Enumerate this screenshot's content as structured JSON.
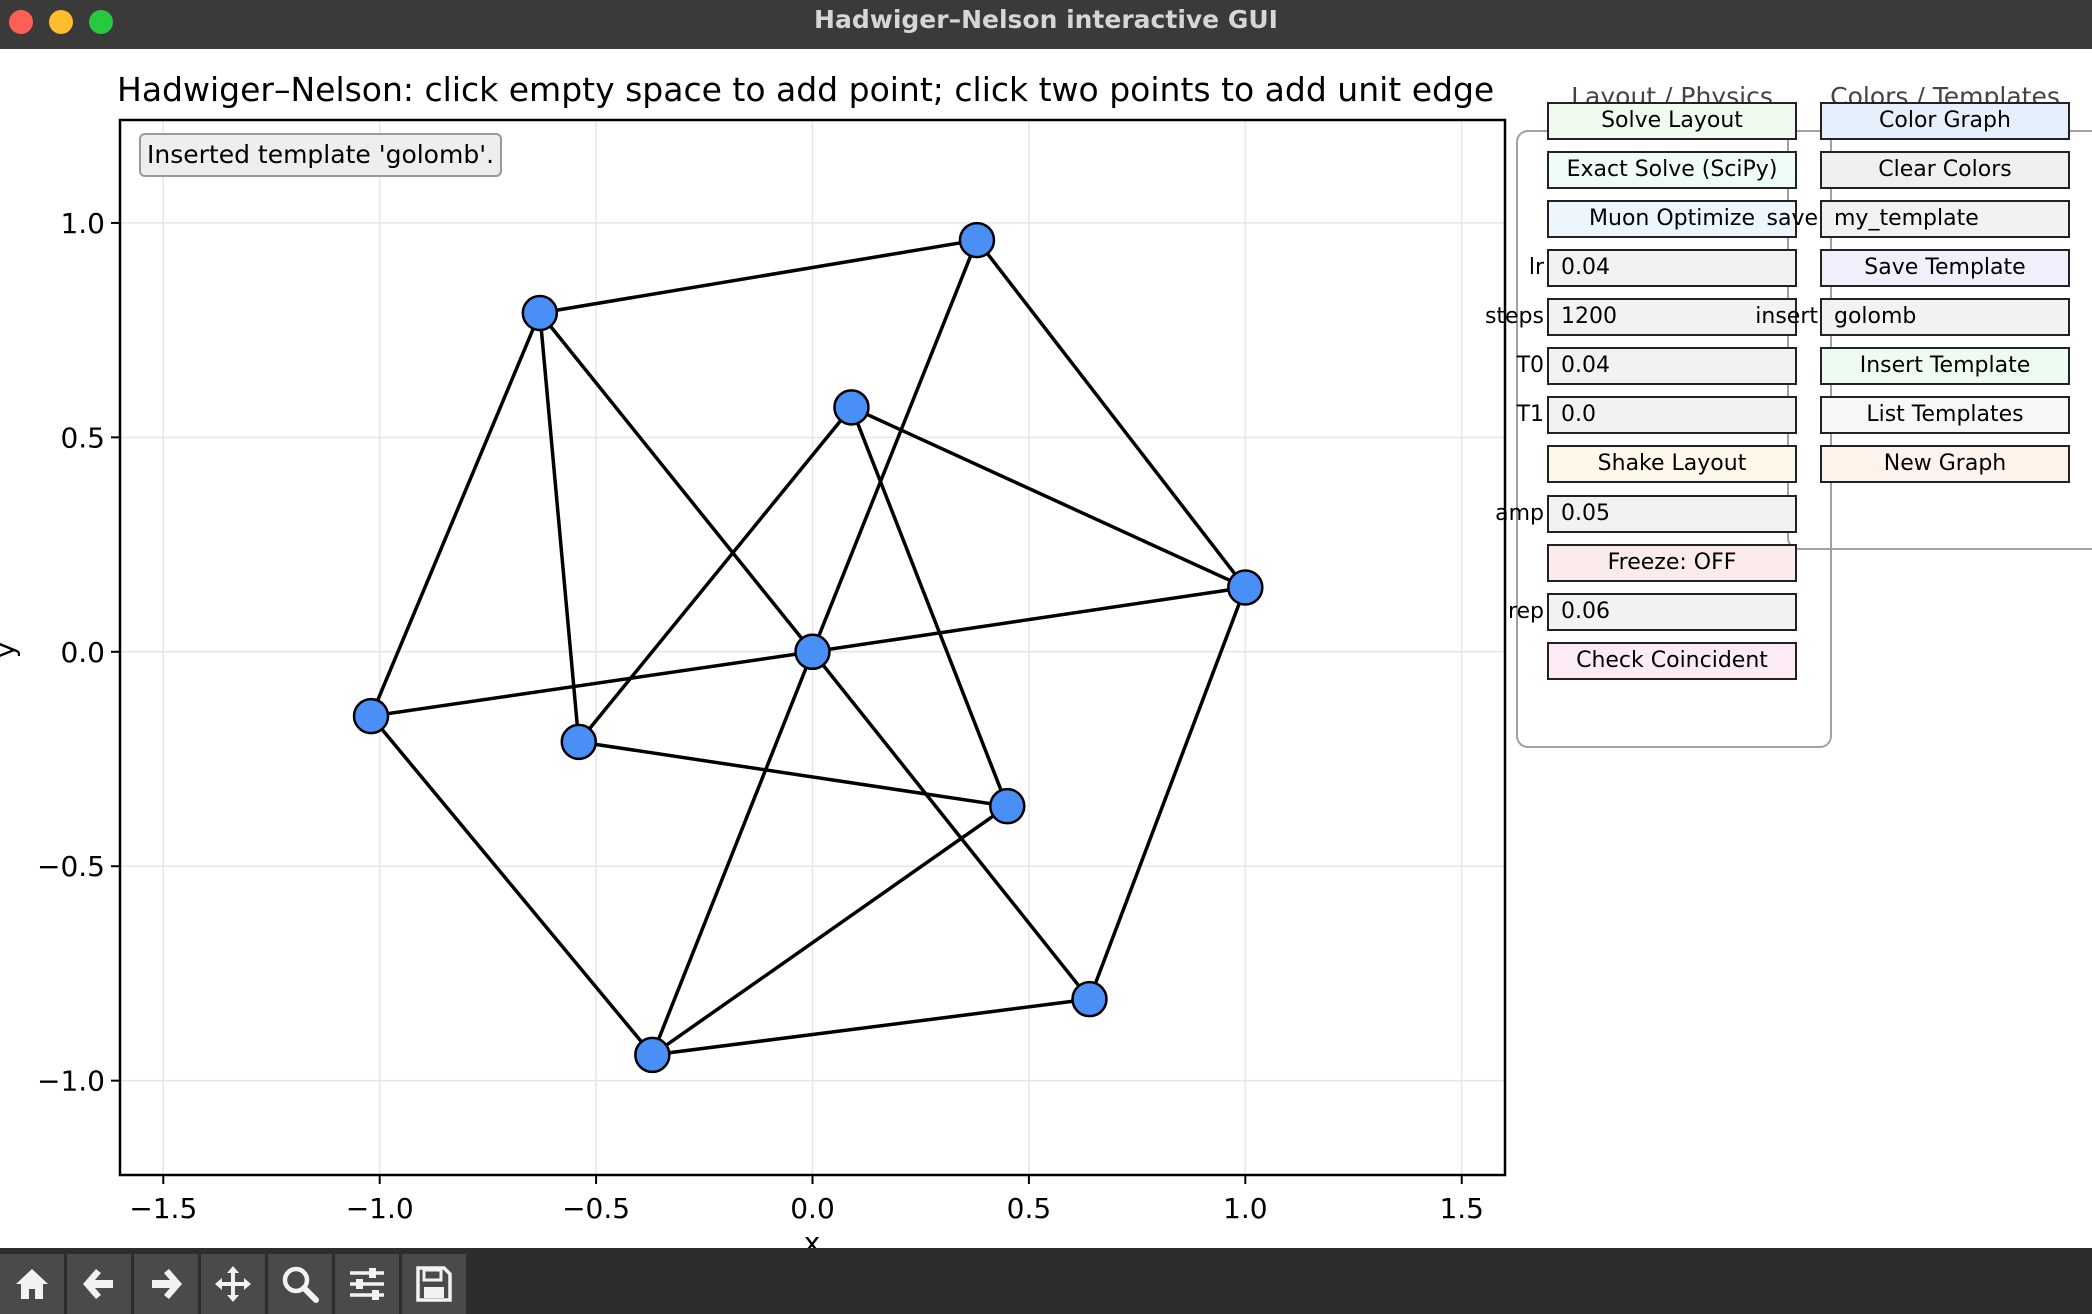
{
  "window": {
    "title": "Hadwiger–Nelson interactive GUI"
  },
  "plot": {
    "title": "Hadwiger–Nelson: click empty space to add point; click two points to add unit edge",
    "xlabel": "x",
    "ylabel": "y",
    "status": "Inserted template 'golomb'."
  },
  "chart_data": {
    "type": "scatter",
    "title": "Hadwiger–Nelson: click empty space to add point; click two points to add unit edge",
    "xlabel": "x",
    "ylabel": "y",
    "xlim": [
      -1.6,
      1.6
    ],
    "ylim": [
      -1.22,
      1.24
    ],
    "xticks": [
      -1.5,
      -1.0,
      -0.5,
      0.0,
      0.5,
      1.0,
      1.5
    ],
    "yticks": [
      -1.0,
      -0.5,
      0.0,
      0.5,
      1.0
    ],
    "xtick_labels": [
      "−1.5",
      "−1.0",
      "−0.5",
      "0.0",
      "0.5",
      "1.0",
      "1.5"
    ],
    "ytick_labels": [
      "−1.0",
      "−0.5",
      "0.0",
      "0.5",
      "1.0"
    ],
    "grid": true,
    "node_color": "#4a8ff5",
    "edge_color": "#000000",
    "nodes": [
      {
        "id": 0,
        "x": 0.0,
        "y": 0.0
      },
      {
        "id": 1,
        "x": 1.0,
        "y": 0.15
      },
      {
        "id": 2,
        "x": 0.38,
        "y": 0.96
      },
      {
        "id": 3,
        "x": -0.63,
        "y": 0.79
      },
      {
        "id": 4,
        "x": -1.02,
        "y": -0.15
      },
      {
        "id": 5,
        "x": -0.37,
        "y": -0.94
      },
      {
        "id": 6,
        "x": 0.64,
        "y": -0.81
      },
      {
        "id": 7,
        "x": 0.09,
        "y": 0.57
      },
      {
        "id": 8,
        "x": -0.54,
        "y": -0.21
      },
      {
        "id": 9,
        "x": 0.45,
        "y": -0.36
      }
    ],
    "edges": [
      [
        1,
        2
      ],
      [
        2,
        3
      ],
      [
        3,
        4
      ],
      [
        4,
        5
      ],
      [
        5,
        6
      ],
      [
        6,
        1
      ],
      [
        0,
        1
      ],
      [
        0,
        2
      ],
      [
        0,
        3
      ],
      [
        0,
        4
      ],
      [
        0,
        5
      ],
      [
        0,
        6
      ],
      [
        7,
        8
      ],
      [
        8,
        9
      ],
      [
        9,
        7
      ],
      [
        7,
        1
      ],
      [
        8,
        3
      ],
      [
        9,
        5
      ]
    ]
  },
  "layout_panel": {
    "header": "Layout / Physics",
    "solve_layout": "Solve Layout",
    "exact_solve": "Exact Solve (SciPy)",
    "muon_optimize": "Muon Optimize",
    "lr_label": "lr",
    "lr_value": "0.04",
    "steps_label": "steps",
    "steps_value": "1200",
    "t0_label": "T0",
    "t0_value": "0.04",
    "t1_label": "T1",
    "t1_value": "0.0",
    "shake_layout": "Shake Layout",
    "amp_label": "amp",
    "amp_value": "0.05",
    "freeze": "Freeze: OFF",
    "rep_label": "rep",
    "rep_value": "0.06",
    "check_coincident": "Check Coincident"
  },
  "colors_panel": {
    "header": "Colors / Templates",
    "color_graph": "Color Graph",
    "clear_colors": "Clear Colors",
    "save_label": "save",
    "save_value": "my_template",
    "save_template": "Save Template",
    "insert_label": "insert",
    "insert_value": "golomb",
    "insert_template": "Insert Template",
    "list_templates": "List Templates",
    "new_graph": "New Graph"
  },
  "toolbar": {
    "icons": [
      "home-icon",
      "back-arrow-icon",
      "forward-arrow-icon",
      "pan-icon",
      "zoom-icon",
      "configure-subplots-icon",
      "save-icon"
    ]
  }
}
